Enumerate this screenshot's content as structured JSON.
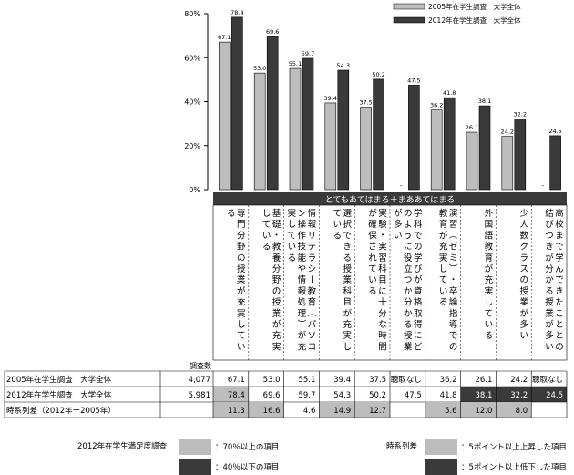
{
  "chart_data": {
    "type": "bar",
    "y_ticks": [
      "80%",
      "60%",
      "40%",
      "20%",
      "0%"
    ],
    "ylim": [
      0,
      80
    ],
    "legend": [
      {
        "name": "2005年在学生調査　大学全体",
        "color": "#bdbdbd"
      },
      {
        "name": "2012年在学生調査　大学全体",
        "color": "#3a3a3a"
      }
    ],
    "category_header": "とてもあてはまる＋まああてはまる",
    "categories": [
      "専門分野の授業が充実している",
      "基礎・教養分野の授業が充実している",
      "情報リテラシー教育（パソコン操作技能や情報処理）が充実している",
      "選択できる授業科目が充実している",
      "実験・実習科目に十分な時間が確保されている",
      "学科での学びが資格取得にどのように役立つか分かる授業が多い",
      "演習（ゼミ）・卒論指導での教育が充実している",
      "外国語教育が充実している",
      "少人数クラスの授業が多い",
      "高校まで学んできたこととの結びつきが分かる授業が多い"
    ],
    "series": [
      {
        "name": "2005年在学生調査　大学全体",
        "values": [
          67.1,
          53.0,
          55.1,
          39.4,
          37.5,
          null,
          36.2,
          26.1,
          24.2,
          null
        ],
        "labels": [
          "67.1",
          "53.0",
          "55.1",
          "39.4",
          "37.5",
          "–",
          "36.2",
          "26.1",
          "24.2",
          "–"
        ]
      },
      {
        "name": "2012年在学生調査　大学全体",
        "values": [
          78.4,
          69.6,
          59.7,
          54.3,
          50.2,
          47.5,
          41.8,
          38.1,
          32.2,
          24.5
        ],
        "labels": [
          "78.4",
          "69.6",
          "59.7",
          "54.3",
          "50.2",
          "47.5",
          "41.8",
          "38.1",
          "32.2",
          "24.5"
        ]
      }
    ]
  },
  "table": {
    "n_header": "調査数",
    "rows": [
      {
        "label": "2005年在学生調査　大学全体",
        "n": "4,077",
        "cells": [
          "67.1",
          "53.0",
          "55.1",
          "39.4",
          "37.5",
          "聴取なし",
          "36.2",
          "26.1",
          "24.2",
          "聴取なし"
        ],
        "shade": [
          "",
          "",
          "",
          "",
          "",
          "",
          "",
          "",
          "",
          ""
        ]
      },
      {
        "label": "2012年在学生調査　大学全体",
        "n": "5,981",
        "cells": [
          "78.4",
          "69.6",
          "59.7",
          "54.3",
          "50.2",
          "47.5",
          "41.8",
          "38.1",
          "32.2",
          "24.5"
        ],
        "shade": [
          "light",
          "",
          "",
          "",
          "",
          "",
          "",
          "dark",
          "dark",
          "dark"
        ]
      },
      {
        "label": "時系列差（2012年ー2005年）",
        "n": "",
        "cells": [
          "11.3",
          "16.6",
          "4.6",
          "14.9",
          "12.7",
          "",
          "5.6",
          "12.0",
          "8.0",
          ""
        ],
        "shade": [
          "light",
          "light",
          "",
          "light",
          "light",
          "",
          "light",
          "light",
          "light",
          ""
        ]
      }
    ]
  },
  "footer_legend": {
    "left_title": "2012年在学生満足度調査",
    "left_items": [
      {
        "label": "：70％以上の項目",
        "color": "#bdbdbd"
      },
      {
        "label": "：40％以下の項目",
        "color": "#3a3a3a"
      }
    ],
    "right_title": "時系列差",
    "right_items": [
      {
        "label": "：5ポイント以上上昇した項目",
        "color": "#bdbdbd"
      },
      {
        "label": "：5ポイント以上低下した項目",
        "color": "#3a3a3a"
      }
    ]
  },
  "colors": {
    "light": "#bdbdbd",
    "dark": "#3a3a3a",
    "header_bg": "#3a3a3a"
  }
}
